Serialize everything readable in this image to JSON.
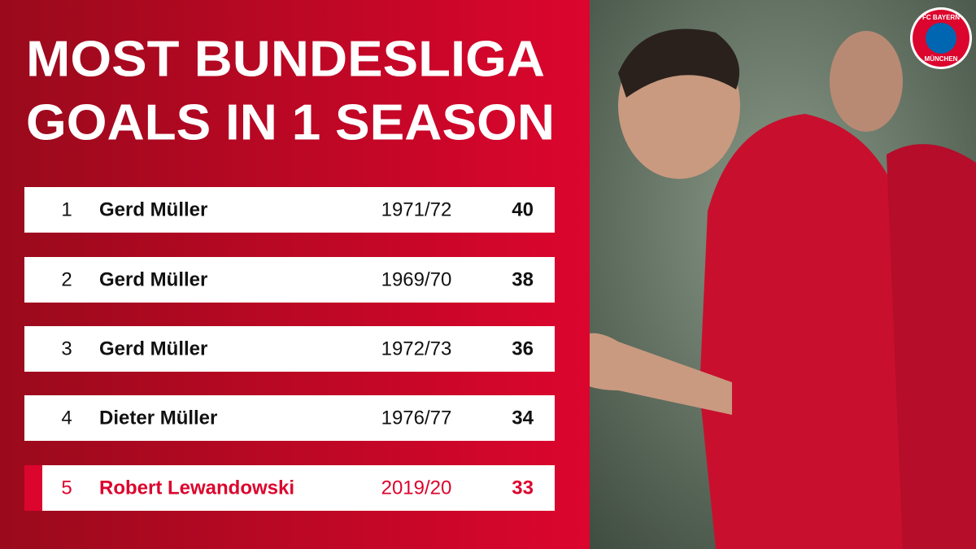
{
  "title": {
    "line1": "MOST BUNDESLIGA",
    "line2": "GOALS IN 1 SEASON"
  },
  "logo": {
    "top": "FC BAYERN",
    "bottom": "MÜNCHEN"
  },
  "table": {
    "rows": [
      [
        1,
        "Gerd Müller",
        "1971/72",
        40
      ],
      [
        2,
        "Gerd Müller",
        "1969/70",
        38
      ],
      [
        3,
        "Gerd Müller",
        "1972/73",
        36
      ],
      [
        4,
        "Dieter Müller",
        "1976/77",
        34
      ],
      [
        5,
        "Robert Lewandowski",
        "2019/20",
        33
      ]
    ]
  }
}
